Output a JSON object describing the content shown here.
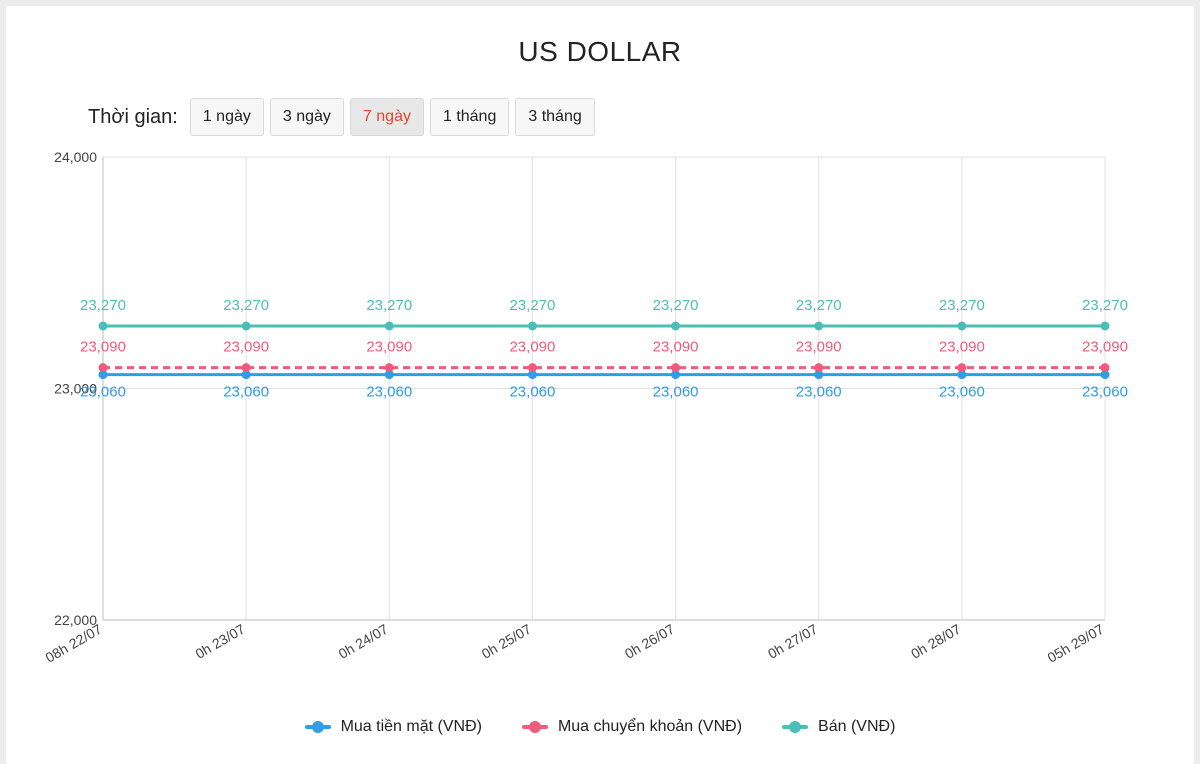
{
  "title": "US DOLLAR",
  "range_selector": {
    "label": "Thời gian:",
    "options": [
      "1 ngày",
      "3 ngày",
      "7 ngày",
      "1 tháng",
      "3 tháng"
    ],
    "active": "7 ngày"
  },
  "colors": {
    "cash_buy": "#2f9ee6",
    "transfer_buy": "#ef5c7b",
    "sell": "#4bbfb5",
    "active_option": "#e2462b"
  },
  "chart_data": {
    "type": "line",
    "x": [
      "08h 22/07",
      "0h 23/07",
      "0h 24/07",
      "0h 25/07",
      "0h 26/07",
      "0h 27/07",
      "0h 28/07",
      "05h 29/07"
    ],
    "y_ticks": [
      "22,000",
      "23,000",
      "24,000"
    ],
    "ylim": [
      22000,
      24000
    ],
    "grid": true,
    "legend_position": "bottom",
    "series": [
      {
        "name": "Mua tiền mặt (VNĐ)",
        "values": [
          23060,
          23060,
          23060,
          23060,
          23060,
          23060,
          23060,
          23060
        ],
        "labels": [
          "23,060",
          "23,060",
          "23,060",
          "23,060",
          "23,060",
          "23,060",
          "23,060",
          "23,060"
        ],
        "color": "#2f9ee6",
        "dashed": false
      },
      {
        "name": "Mua chuyển khoản (VNĐ)",
        "values": [
          23090,
          23090,
          23090,
          23090,
          23090,
          23090,
          23090,
          23090
        ],
        "labels": [
          "23,090",
          "23,090",
          "23,090",
          "23,090",
          "23,090",
          "23,090",
          "23,090",
          "23,090"
        ],
        "color": "#ef5c7b",
        "dashed": true
      },
      {
        "name": "Bán (VNĐ)",
        "values": [
          23270,
          23270,
          23270,
          23270,
          23270,
          23270,
          23270,
          23270
        ],
        "labels": [
          "23,270",
          "23,270",
          "23,270",
          "23,270",
          "23,270",
          "23,270",
          "23,270",
          "23,270"
        ],
        "color": "#4bbfb5",
        "dashed": false
      }
    ]
  }
}
